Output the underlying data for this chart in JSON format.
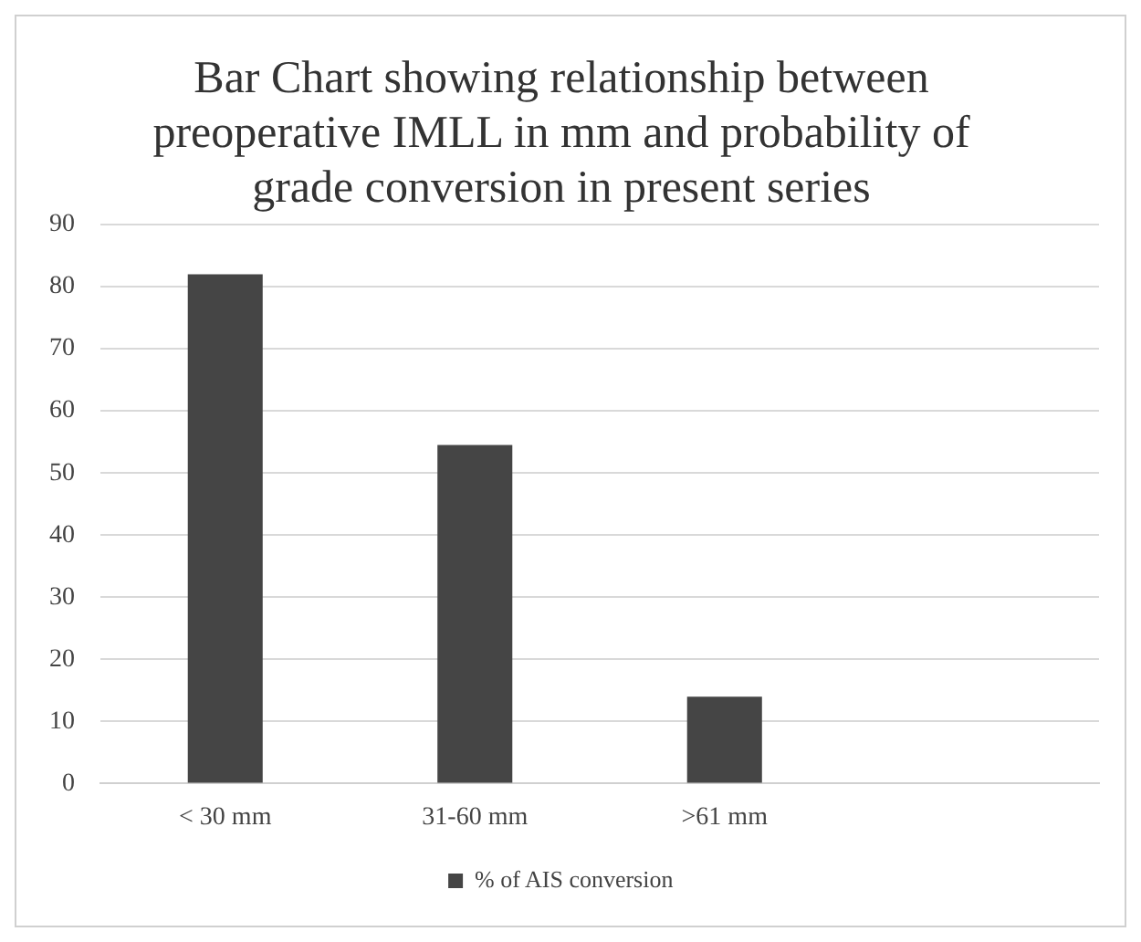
{
  "chart_data": {
    "type": "bar",
    "title": "Bar Chart showing relationship between preoperative IMLL in mm and probability of grade conversion in present series",
    "categories": [
      "< 30 mm",
      "31-60 mm",
      ">61 mm",
      null
    ],
    "series": [
      {
        "name": "% of AIS conversion",
        "color": "#454545",
        "values": [
          82,
          54.5,
          14,
          null
        ]
      }
    ],
    "ylim": [
      0,
      90
    ],
    "yticks": [
      0,
      10,
      20,
      30,
      40,
      50,
      60,
      70,
      80,
      90
    ],
    "grid": "y",
    "legend": "bottom"
  }
}
